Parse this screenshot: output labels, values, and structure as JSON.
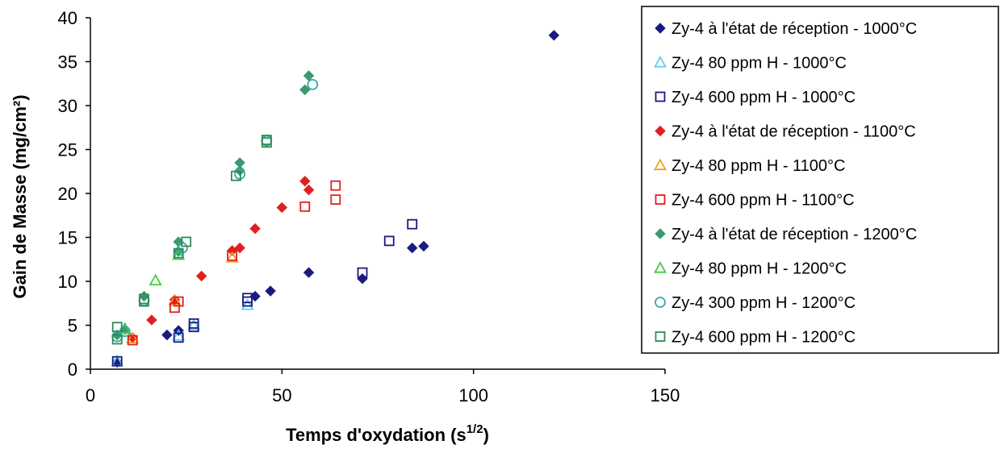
{
  "chart_data": {
    "type": "scatter",
    "title": "",
    "xlabel": "Temps d'oxydation (s",
    "xlabel_sup": "1/2",
    "xlabel_end": ")",
    "ylabel": "Gain de Masse (mg/cm²)",
    "xlim": [
      0,
      150
    ],
    "ylim": [
      0,
      40
    ],
    "xticks": [
      0,
      50,
      100,
      150
    ],
    "yticks": [
      0,
      5,
      10,
      15,
      20,
      25,
      30,
      35,
      40
    ],
    "grid": false,
    "legend_position": "right",
    "series": [
      {
        "name": "Zy-4 à l'état de réception - 1000°C",
        "marker": "diamond",
        "filled": true,
        "color": "#1a1a80",
        "points": [
          [
            7,
            0.8
          ],
          [
            20,
            3.9
          ],
          [
            23,
            4.4
          ],
          [
            43,
            8.3
          ],
          [
            47,
            8.9
          ],
          [
            57,
            11.0
          ],
          [
            71,
            10.3
          ],
          [
            84,
            13.8
          ],
          [
            87,
            14.0
          ],
          [
            121,
            38.0
          ]
        ]
      },
      {
        "name": "Zy-4 80 ppm H - 1000°C",
        "marker": "triangle",
        "filled": false,
        "color": "#66ccee",
        "points": [
          [
            7,
            0.9
          ],
          [
            23,
            3.8
          ],
          [
            27,
            5.0
          ],
          [
            41,
            7.3
          ]
        ]
      },
      {
        "name": "Zy-4 600 ppm H - 1000°C",
        "marker": "square",
        "filled": false,
        "color": "#1a1a80",
        "points": [
          [
            7,
            0.9
          ],
          [
            23,
            3.6
          ],
          [
            27,
            4.8
          ],
          [
            27,
            5.2
          ],
          [
            41,
            7.7
          ],
          [
            41,
            8.1
          ],
          [
            71,
            11.0
          ],
          [
            78,
            14.6
          ],
          [
            84,
            16.5
          ]
        ]
      },
      {
        "name": "Zy-4 à l'état de réception - 1100°C",
        "marker": "diamond",
        "filled": true,
        "color": "#e02020",
        "points": [
          [
            11,
            3.6
          ],
          [
            16,
            5.6
          ],
          [
            22,
            7.9
          ],
          [
            29,
            10.6
          ],
          [
            37,
            13.5
          ],
          [
            39,
            13.8
          ],
          [
            43,
            16.0
          ],
          [
            50,
            18.4
          ],
          [
            56,
            21.4
          ],
          [
            57,
            20.4
          ]
        ]
      },
      {
        "name": "Zy-4 80 ppm H - 1100°C",
        "marker": "triangle",
        "filled": false,
        "color": "#f0a020",
        "points": [
          [
            11,
            3.5
          ],
          [
            22,
            7.8
          ],
          [
            37,
            12.7
          ]
        ]
      },
      {
        "name": "Zy-4 600 ppm H - 1100°C",
        "marker": "square",
        "filled": false,
        "color": "#e02020",
        "points": [
          [
            11,
            3.3
          ],
          [
            22,
            7.0
          ],
          [
            23,
            7.7
          ],
          [
            37,
            12.9
          ],
          [
            56,
            18.5
          ],
          [
            64,
            19.3
          ],
          [
            64,
            20.9
          ]
        ]
      },
      {
        "name": "Zy-4 à l'état de réception - 1200°C",
        "marker": "diamond",
        "filled": true,
        "color": "#3c9970",
        "points": [
          [
            7,
            3.9
          ],
          [
            9,
            4.5
          ],
          [
            14,
            8.3
          ],
          [
            23,
            13.4
          ],
          [
            23,
            14.5
          ],
          [
            39,
            22.6
          ],
          [
            39,
            23.5
          ],
          [
            56,
            31.8
          ],
          [
            57,
            33.4
          ]
        ]
      },
      {
        "name": "Zy-4 80 ppm H - 1200°C",
        "marker": "triangle",
        "filled": false,
        "color": "#44cc44",
        "points": [
          [
            9,
            4.6
          ],
          [
            17,
            10.1
          ],
          [
            23,
            13.0
          ]
        ]
      },
      {
        "name": "Zy-4 300 ppm H - 1200°C",
        "marker": "circle",
        "filled": false,
        "color": "#3aaaa0",
        "points": [
          [
            7,
            3.7
          ],
          [
            9,
            4.3
          ],
          [
            14,
            7.8
          ],
          [
            24,
            13.8
          ],
          [
            39,
            22.2
          ],
          [
            46,
            26.0
          ],
          [
            58,
            32.4
          ]
        ]
      },
      {
        "name": "Zy-4 600 ppm H - 1200°C",
        "marker": "square",
        "filled": false,
        "color": "#2e8b57",
        "points": [
          [
            7,
            3.4
          ],
          [
            7,
            4.8
          ],
          [
            14,
            7.7
          ],
          [
            14,
            8.0
          ],
          [
            23,
            13.2
          ],
          [
            25,
            14.5
          ],
          [
            38,
            22.0
          ],
          [
            46,
            25.8
          ],
          [
            46,
            26.1
          ]
        ]
      }
    ]
  }
}
